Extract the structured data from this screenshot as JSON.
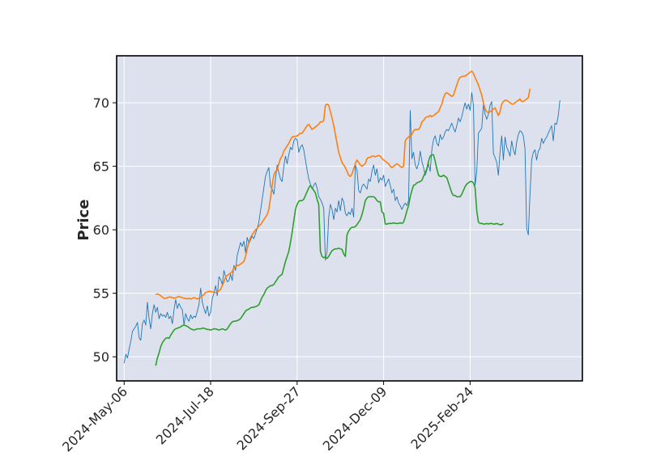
{
  "chart_data": {
    "type": "line",
    "title": "",
    "xlabel": "",
    "ylabel": "Price",
    "x_tick_labels": [
      "2024-May-06",
      "2024-Jul-18",
      "2024-Sep-27",
      "2024-Dec-09",
      "2025-Feb-24"
    ],
    "y_ticks": [
      50,
      55,
      60,
      65,
      70
    ],
    "ylim": [
      48.1,
      73.7
    ],
    "x_range_sessions": [
      -4.5,
      275.5
    ],
    "grid": true,
    "background_color": "#dde1ed",
    "grid_color": "#ffffff",
    "series": [
      {
        "color": "#1f77b4",
        "start_session": 0,
        "values": [
          49.5,
          50.2,
          49.9,
          50.6,
          51.2,
          52.0,
          52.2,
          52.4,
          52.7,
          51.5,
          51.3,
          52.6,
          52.9,
          52.5,
          54.3,
          53.0,
          52.2,
          53.4,
          54.1,
          53.5,
          53.9,
          53.0,
          53.4,
          53.2,
          53.3,
          53.1,
          53.5,
          53.0,
          53.2,
          52.6,
          53.7,
          54.5,
          53.8,
          54.2,
          53.9,
          53.7,
          52.5,
          53.4,
          53.0,
          52.8,
          53.3,
          53.0,
          53.2,
          53.1,
          53.6,
          54.1,
          55.4,
          54.3,
          53.8,
          53.4,
          54.0,
          53.2,
          53.5,
          54.6,
          55.0,
          55.6,
          54.8,
          56.3,
          56.1,
          55.7,
          56.8,
          56.3,
          55.9,
          56.0,
          56.5,
          56.0,
          57.2,
          56.8,
          58.0,
          58.5,
          59.0,
          58.7,
          59.1,
          58.2,
          59.4,
          58.9,
          59.2,
          59.5,
          59.3,
          59.7,
          60.1,
          60.6,
          61.5,
          62.4,
          63.3,
          64.2,
          64.6,
          64.9,
          63.4,
          63.2,
          62.8,
          64.0,
          65.1,
          64.5,
          64.0,
          63.8,
          65.0,
          65.8,
          65.2,
          65.9,
          66.5,
          66.3,
          67.0,
          67.2,
          67.1,
          66.1,
          66.5,
          66.7,
          66.3,
          65.5,
          64.7,
          64.0,
          63.6,
          63.2,
          63.5,
          63.7,
          63.3,
          62.6,
          62.4,
          62.1,
          61.7,
          57.6,
          58.3,
          61.0,
          62.0,
          61.6,
          60.8,
          61.7,
          61.4,
          62.3,
          61.5,
          62.5,
          62.2,
          61.3,
          61.1,
          61.4,
          61.2,
          61.7,
          61.0,
          65.1,
          64.7,
          63.1,
          62.9,
          63.4,
          63.6,
          63.4,
          63.2,
          64.0,
          63.8,
          64.6,
          65.1,
          64.3,
          64.8,
          63.7,
          64.1,
          63.9,
          64.3,
          63.4,
          63.7,
          64.0,
          63.5,
          62.9,
          63.2,
          62.3,
          62.6,
          62.1,
          61.9,
          61.6,
          61.9,
          62.1,
          61.9,
          62.3,
          69.4,
          65.6,
          66.1,
          65.1,
          64.8,
          65.2,
          66.2,
          65.4,
          64.9,
          64.3,
          64.7,
          65.2,
          64.6,
          66.3,
          67.1,
          67.4,
          66.8,
          66.6,
          67.5,
          67.1,
          67.3,
          67.7,
          67.9,
          67.8,
          68.1,
          68.4,
          68.0,
          67.7,
          68.2,
          68.8,
          68.5,
          68.9,
          69.5,
          70.0,
          69.5,
          69.9,
          69.4,
          70.8,
          69.8,
          63.5,
          64.6,
          67.6,
          67.8,
          68.0,
          69.9,
          69.1,
          68.7,
          69.1,
          69.8,
          70.1,
          66.0,
          65.7,
          65.3,
          64.3,
          66.1,
          67.4,
          65.5,
          67.3,
          66.5,
          66.2,
          65.8,
          67.0,
          66.3,
          65.9,
          66.9,
          67.5,
          67.8,
          67.7,
          67.4,
          66.4,
          60.1,
          59.6,
          62.8,
          65.5,
          66.1,
          66.3,
          65.5,
          66.2,
          66.4,
          67.2,
          66.8,
          67.1,
          67.3,
          67.6,
          67.9,
          68.2,
          67.0,
          68.4,
          68.3,
          69.0,
          70.2
        ]
      },
      {
        "color": "#ff7f0e",
        "start_session": 19,
        "values": [
          54.9,
          54.95,
          54.9,
          54.8,
          54.7,
          54.6,
          54.6,
          54.65,
          54.7,
          54.7,
          54.65,
          54.6,
          54.65,
          54.7,
          54.75,
          54.7,
          54.65,
          54.6,
          54.6,
          54.55,
          54.6,
          54.55,
          54.6,
          54.65,
          54.6,
          54.55,
          54.6,
          54.7,
          54.8,
          54.9,
          55.05,
          55.1,
          55.15,
          55.15,
          55.1,
          55.1,
          55.05,
          55.1,
          55.2,
          55.3,
          55.6,
          55.9,
          56.3,
          56.4,
          56.5,
          56.6,
          56.7,
          57.0,
          57.1,
          57.2,
          57.2,
          57.3,
          57.4,
          57.5,
          57.9,
          58.5,
          59.0,
          59.4,
          59.6,
          59.8,
          60.0,
          60.1,
          60.3,
          60.4,
          60.6,
          60.8,
          61.0,
          61.2,
          61.6,
          62.5,
          63.5,
          64.3,
          64.6,
          64.7,
          65.2,
          65.6,
          65.8,
          66.2,
          66.4,
          66.6,
          66.8,
          67.1,
          67.3,
          67.35,
          67.35,
          67.4,
          67.5,
          67.6,
          67.6,
          67.8,
          68.0,
          68.2,
          68.3,
          68.1,
          67.9,
          68.0,
          68.1,
          68.2,
          68.3,
          68.5,
          68.5,
          68.6,
          69.8,
          69.9,
          69.8,
          69.3,
          68.8,
          68.2,
          67.5,
          66.8,
          66.1,
          65.7,
          65.3,
          65.1,
          64.9,
          64.6,
          64.3,
          64.2,
          64.4,
          64.8,
          65.2,
          65.5,
          65.3,
          65.1,
          65.0,
          65.1,
          65.2,
          65.6,
          65.7,
          65.7,
          65.8,
          65.8,
          65.75,
          65.8,
          65.85,
          65.8,
          65.6,
          65.5,
          65.4,
          65.3,
          65.2,
          65.0,
          64.9,
          65.0,
          65.1,
          65.2,
          65.1,
          65.0,
          64.9,
          65.0,
          67.0,
          67.2,
          67.3,
          67.4,
          67.5,
          67.8,
          67.9,
          67.9,
          67.9,
          68.1,
          68.5,
          68.6,
          68.8,
          68.9,
          68.9,
          69.0,
          68.9,
          69.0,
          69.1,
          69.2,
          69.3,
          69.6,
          69.9,
          70.4,
          70.7,
          70.8,
          70.7,
          70.6,
          70.5,
          70.6,
          71.0,
          71.4,
          71.8,
          72.0,
          72.05,
          72.1,
          72.1,
          72.2,
          72.3,
          72.4,
          72.5,
          72.3,
          72.0,
          71.7,
          71.4,
          71.0,
          70.6,
          70.0,
          69.5,
          69.3,
          69.2,
          69.3,
          69.4,
          69.5,
          69.6,
          69.3,
          69.0,
          69.3,
          69.9,
          70.1,
          70.2,
          70.2,
          70.1,
          70.0,
          69.9,
          69.9,
          70.0,
          70.1,
          70.2,
          70.3,
          70.1,
          70.1,
          70.2,
          70.3,
          70.4,
          71.1
        ]
      },
      {
        "color": "#2ca02c",
        "start_session": 19,
        "values": [
          49.3,
          49.9,
          50.3,
          50.8,
          51.1,
          51.3,
          51.45,
          51.5,
          51.45,
          51.7,
          51.9,
          52.1,
          52.2,
          52.25,
          52.3,
          52.35,
          52.45,
          52.5,
          52.45,
          52.4,
          52.3,
          52.2,
          52.15,
          52.1,
          52.15,
          52.2,
          52.2,
          52.2,
          52.25,
          52.25,
          52.2,
          52.15,
          52.15,
          52.1,
          52.15,
          52.2,
          52.2,
          52.15,
          52.1,
          52.15,
          52.2,
          52.15,
          52.1,
          52.2,
          52.4,
          52.6,
          52.75,
          52.8,
          52.8,
          52.85,
          52.9,
          53.0,
          53.2,
          53.4,
          53.6,
          53.7,
          53.75,
          53.85,
          53.9,
          53.9,
          53.95,
          54.0,
          54.1,
          54.4,
          54.7,
          54.9,
          55.2,
          55.4,
          55.5,
          55.6,
          55.6,
          55.7,
          55.9,
          56.1,
          56.3,
          56.4,
          56.5,
          57.0,
          57.5,
          57.9,
          58.3,
          59.0,
          59.8,
          60.7,
          61.6,
          62.0,
          62.25,
          62.3,
          62.3,
          62.4,
          62.7,
          63.0,
          63.3,
          63.5,
          63.3,
          63.1,
          62.9,
          62.4,
          62.0,
          58.3,
          57.9,
          57.8,
          57.85,
          57.75,
          57.9,
          58.15,
          58.35,
          58.45,
          58.5,
          58.5,
          58.55,
          58.5,
          58.45,
          58.1,
          57.9,
          59.6,
          59.9,
          60.1,
          60.2,
          60.2,
          60.25,
          60.4,
          60.6,
          60.8,
          61.2,
          61.7,
          62.3,
          62.5,
          62.6,
          62.6,
          62.6,
          62.6,
          62.5,
          62.3,
          62.2,
          62.2,
          61.4,
          61.3,
          60.45,
          60.45,
          60.5,
          60.5,
          60.5,
          60.55,
          60.5,
          60.5,
          60.5,
          60.55,
          60.5,
          60.6,
          61.0,
          61.5,
          61.9,
          62.6,
          63.1,
          63.5,
          63.55,
          63.7,
          63.75,
          63.8,
          63.9,
          64.2,
          64.5,
          64.8,
          65.4,
          65.8,
          65.9,
          65.9,
          65.4,
          64.8,
          64.3,
          64.2,
          64.2,
          64.3,
          64.2,
          64.1,
          63.7,
          63.3,
          62.9,
          62.7,
          62.7,
          62.6,
          62.6,
          62.6,
          62.8,
          63.1,
          63.4,
          63.6,
          63.7,
          63.8,
          63.8,
          63.7,
          63.3,
          61.5,
          60.6,
          60.5,
          60.5,
          60.45,
          60.45,
          60.5,
          60.45,
          60.5,
          60.5,
          60.45,
          60.45,
          60.5,
          60.45,
          60.4,
          60.4,
          60.5
        ]
      }
    ]
  }
}
